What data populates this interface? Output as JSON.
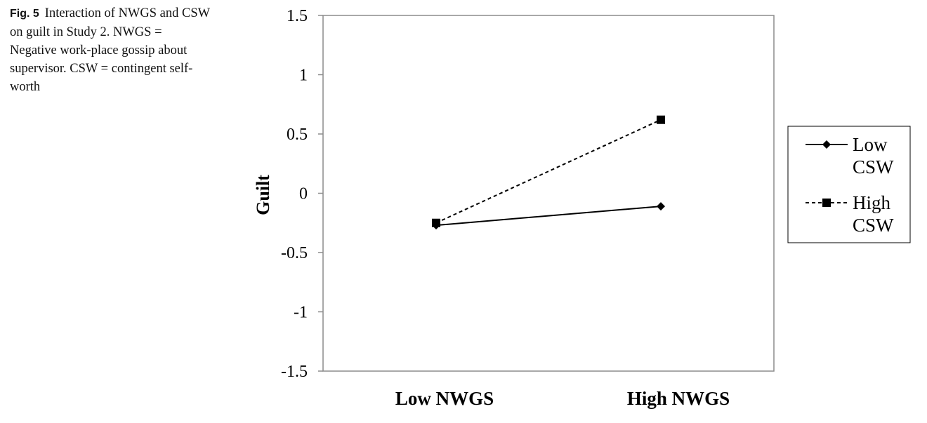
{
  "caption": {
    "label": "Fig. 5",
    "text": "Interaction of NWGS and CSW on guilt in Study 2. NWGS = Negative work-place gossip about supervisor. CSW = contingent self-worth"
  },
  "chart_data": {
    "type": "line",
    "title": "",
    "xlabel": "",
    "ylabel": "Guilt",
    "categories": [
      "Low NWGS",
      "High NWGS"
    ],
    "ylim": [
      -1.5,
      1.5
    ],
    "yticks": [
      "1.5",
      "1",
      "0.5",
      "0",
      "-0.5",
      "-1",
      "-1.5"
    ],
    "legend_position": "right",
    "grid": false,
    "series": [
      {
        "name": "Low CSW",
        "name_lines": [
          "Low",
          "CSW"
        ],
        "marker": "diamond",
        "dash": "solid",
        "color": "#000000",
        "values": [
          -0.27,
          -0.11
        ]
      },
      {
        "name": "High CSW",
        "name_lines": [
          "High",
          "CSW"
        ],
        "marker": "square",
        "dash": "dashed",
        "color": "#000000",
        "values": [
          -0.25,
          0.62
        ]
      }
    ]
  }
}
